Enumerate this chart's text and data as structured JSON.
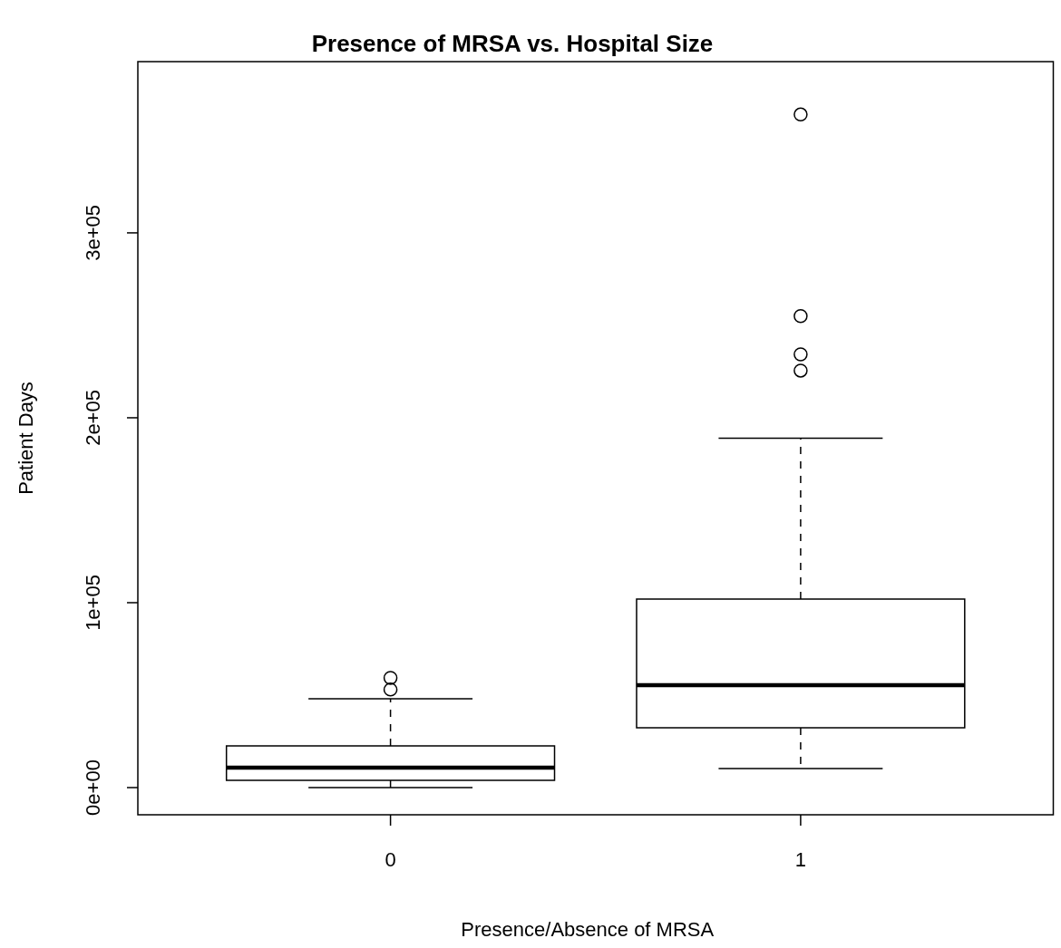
{
  "chart_data": {
    "type": "box",
    "title": "Presence of MRSA vs. Hospital Size",
    "xlabel": "Presence/Absence of MRSA",
    "ylabel": "Patient Days",
    "categories": [
      "0",
      "1"
    ],
    "boxes": [
      {
        "low": 0,
        "q1": 3900,
        "median": 10800,
        "q3": 22500,
        "high": 48000,
        "outliers": [
          53000,
          59300
        ]
      },
      {
        "low": 10300,
        "q1": 32400,
        "median": 55400,
        "q3": 102000,
        "high": 189000,
        "outliers": [
          225500,
          234300,
          255000,
          364000
        ]
      }
    ],
    "ylim": [
      -14700,
      392600
    ],
    "yticks": [
      {
        "value": 0,
        "label": "0e+00"
      },
      {
        "value": 100000,
        "label": "1e+05"
      },
      {
        "value": 200000,
        "label": "2e+05"
      },
      {
        "value": 300000,
        "label": "3e+05"
      }
    ]
  }
}
